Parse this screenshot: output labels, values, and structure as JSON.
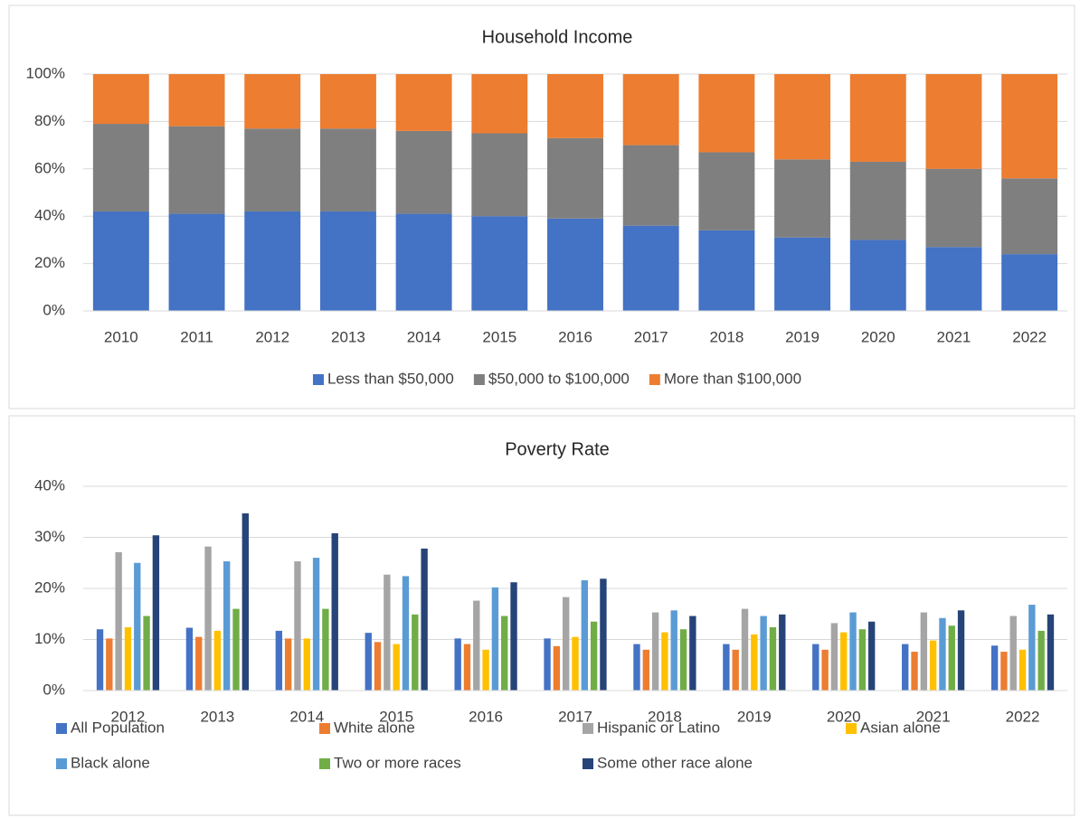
{
  "chart_data": [
    {
      "type": "bar",
      "stacked": true,
      "title": "Household Income",
      "categories": [
        "2010",
        "2011",
        "2012",
        "2013",
        "2014",
        "2015",
        "2016",
        "2017",
        "2018",
        "2019",
        "2020",
        "2021",
        "2022"
      ],
      "series": [
        {
          "name": "Less than $50,000",
          "color": "#4472c4",
          "values": [
            42,
            41,
            42,
            42,
            41,
            40,
            39,
            36,
            34,
            31,
            30,
            27,
            24
          ]
        },
        {
          "name": "$50,000 to $100,000",
          "color": "#7f7f7f",
          "values": [
            37,
            37,
            35,
            35,
            35,
            35,
            34,
            34,
            33,
            33,
            33,
            33,
            32
          ]
        },
        {
          "name": "More than $100,000",
          "color": "#ed7d31",
          "values": [
            21,
            22,
            23,
            23,
            24,
            25,
            27,
            30,
            33,
            36,
            37,
            40,
            44
          ]
        }
      ],
      "ylim": [
        0,
        100
      ],
      "yticks": [
        {
          "value": 0,
          "label": "0%"
        },
        {
          "value": 20,
          "label": "20%"
        },
        {
          "value": 40,
          "label": "40%"
        },
        {
          "value": 60,
          "label": "60%"
        },
        {
          "value": 80,
          "label": "80%"
        },
        {
          "value": 100,
          "label": "100%"
        }
      ],
      "grid": true,
      "legend": "bottom"
    },
    {
      "type": "bar",
      "stacked": false,
      "title": "Poverty Rate",
      "categories": [
        "2012",
        "2013",
        "2014",
        "2015",
        "2016",
        "2017",
        "2018",
        "2019",
        "2020",
        "2021",
        "2022"
      ],
      "series": [
        {
          "name": "All Population",
          "color": "#4472c4",
          "values": [
            12,
            12.3,
            11.7,
            11.3,
            10.2,
            10.2,
            9.1,
            9.1,
            9.1,
            9.1,
            8.8
          ]
        },
        {
          "name": "White alone",
          "color": "#ed7d31",
          "values": [
            10.2,
            10.5,
            10.2,
            9.5,
            9.1,
            8.7,
            8,
            8,
            8,
            7.6,
            7.6
          ]
        },
        {
          "name": "Hispanic or Latino",
          "color": "#a5a5a5",
          "values": [
            27.1,
            28.2,
            25.3,
            22.7,
            17.6,
            18.3,
            15.3,
            16,
            13.2,
            15.3,
            14.6
          ]
        },
        {
          "name": "Asian alone",
          "color": "#ffc000",
          "values": [
            12.4,
            11.7,
            10.2,
            9.1,
            8,
            10.5,
            11.4,
            11,
            11.4,
            9.8,
            8
          ]
        },
        {
          "name": "Black alone",
          "color": "#5b9bd5",
          "values": [
            25,
            25.3,
            26,
            22.4,
            20.2,
            21.6,
            15.7,
            14.6,
            15.3,
            14.2,
            16.8
          ]
        },
        {
          "name": "Two or more races",
          "color": "#70ad47",
          "values": [
            14.6,
            16,
            16,
            14.9,
            14.6,
            13.5,
            12,
            12.4,
            12,
            12.7,
            11.7
          ]
        },
        {
          "name": "Some other race alone",
          "color": "#264478",
          "values": [
            30.4,
            34.7,
            30.8,
            27.8,
            21.2,
            21.9,
            14.6,
            14.9,
            13.5,
            15.7,
            14.9
          ]
        }
      ],
      "ylim": [
        0,
        40
      ],
      "yticks": [
        {
          "value": 0,
          "label": "0%"
        },
        {
          "value": 10,
          "label": "10%"
        },
        {
          "value": 20,
          "label": "20%"
        },
        {
          "value": 30,
          "label": "30%"
        },
        {
          "value": 40,
          "label": "40%"
        }
      ],
      "grid": true,
      "legend": "bottom"
    }
  ]
}
